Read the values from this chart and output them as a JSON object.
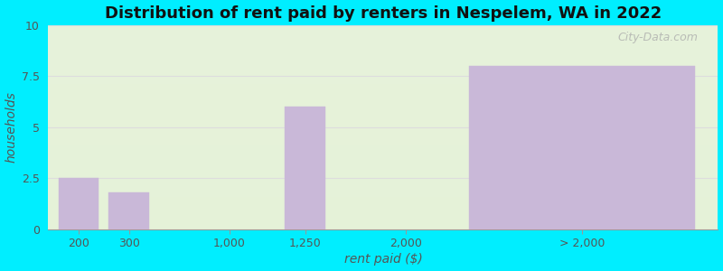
{
  "title": "Distribution of rent paid by renters in Nespelem, WA in 2022",
  "xlabel": "rent paid ($)",
  "ylabel": "households",
  "bar_heights": [
    2.5,
    1.8,
    0,
    6,
    0,
    8
  ],
  "bar_color": "#c9b8d8",
  "ylim": [
    0,
    10
  ],
  "yticks": [
    0,
    2.5,
    5,
    7.5,
    10
  ],
  "ytick_labels": [
    "0",
    "2.5",
    "5",
    "7.5",
    "10"
  ],
  "bg_outer": "#00eeff",
  "title_fontsize": 13,
  "title_fontweight": "bold",
  "axis_label_fontsize": 10,
  "tick_fontsize": 9,
  "tick_color": "#555555",
  "watermark": "City-Data.com",
  "xtick_labels": [
    "200",
    "300",
    "1,000",
    "1,250",
    "2,000",
    "> 2,000"
  ],
  "grid_color": "#dddddd",
  "bar_edge_color": "#c9b8d8"
}
